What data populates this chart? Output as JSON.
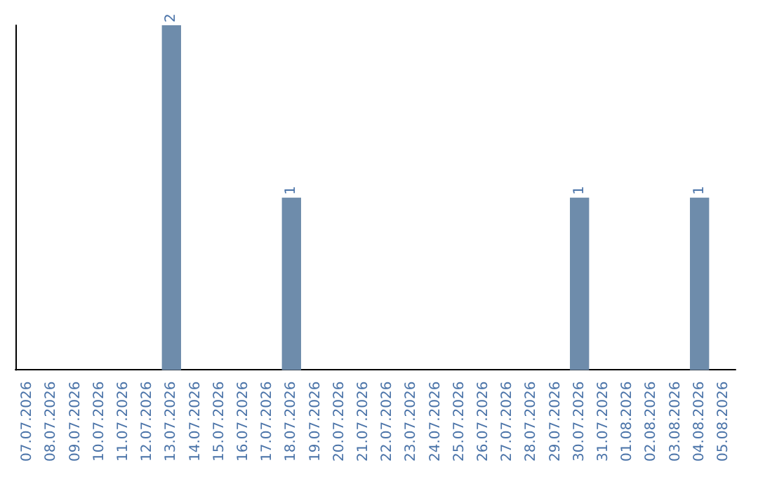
{
  "chart_data": {
    "type": "bar",
    "categories": [
      "07.07.2026",
      "08.07.2026",
      "09.07.2026",
      "10.07.2026",
      "11.07.2026",
      "12.07.2026",
      "13.07.2026",
      "14.07.2026",
      "15.07.2026",
      "16.07.2026",
      "17.07.2026",
      "18.07.2026",
      "19.07.2026",
      "20.07.2026",
      "21.07.2026",
      "22.07.2026",
      "23.07.2026",
      "24.07.2026",
      "25.07.2026",
      "26.07.2026",
      "27.07.2026",
      "28.07.2026",
      "29.07.2026",
      "30.07.2026",
      "31.07.2026",
      "01.08.2026",
      "02.08.2026",
      "03.08.2026",
      "04.08.2026",
      "05.08.2026"
    ],
    "values": [
      0,
      0,
      0,
      0,
      0,
      0,
      2,
      0,
      0,
      0,
      0,
      1,
      0,
      0,
      0,
      0,
      0,
      0,
      0,
      0,
      0,
      0,
      0,
      1,
      0,
      0,
      0,
      0,
      1,
      0
    ],
    "value_labels": [
      null,
      null,
      null,
      null,
      null,
      null,
      "2",
      null,
      null,
      null,
      null,
      "1",
      null,
      null,
      null,
      null,
      null,
      null,
      null,
      null,
      null,
      null,
      null,
      "1",
      null,
      null,
      null,
      null,
      "1",
      null
    ],
    "color": "#6e8cab",
    "tick_labels": "x",
    "grid": false
  }
}
